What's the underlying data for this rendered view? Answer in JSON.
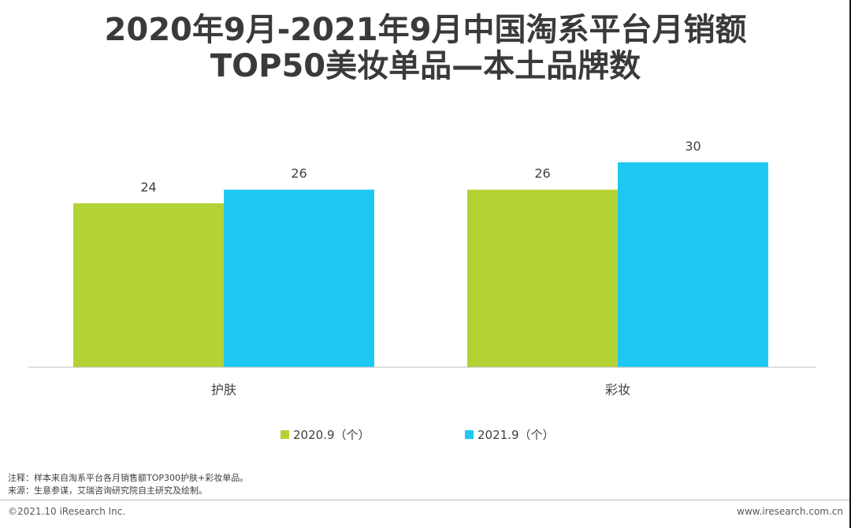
{
  "header": {
    "title_line1": "2020年9月-2021年9月中国淘系平台月销额",
    "title_line2": "TOP50美妆单品—本土品牌数"
  },
  "chart_data": {
    "type": "bar",
    "categories": [
      "护肤",
      "彩妆"
    ],
    "series": [
      {
        "name": "2020.9（个）",
        "values": [
          24,
          26
        ],
        "color": "#b3d235"
      },
      {
        "name": "2021.9（个）",
        "values": [
          26,
          30
        ],
        "color": "#1fc8f2"
      }
    ],
    "ylim": [
      0,
      30
    ],
    "title": "2020年9月-2021年9月中国淘系平台月销额TOP50美妆单品—本土品牌数",
    "xlabel": "",
    "ylabel": "",
    "legend_position": "bottom"
  },
  "legend": {
    "item1": "2020.9（个）",
    "item2": "2021.9（个）",
    "color1": "#b3d235",
    "color2": "#1fc8f2"
  },
  "notes": {
    "note": "注释：样本来自淘系平台各月销售额TOP300护肤+彩妆单品。",
    "source": "来源：生意参谋，艾瑞咨询研究院自主研究及绘制。"
  },
  "footer": {
    "copyright": "©2021.10 iResearch Inc.",
    "website": "www.iresearch.com.cn"
  }
}
